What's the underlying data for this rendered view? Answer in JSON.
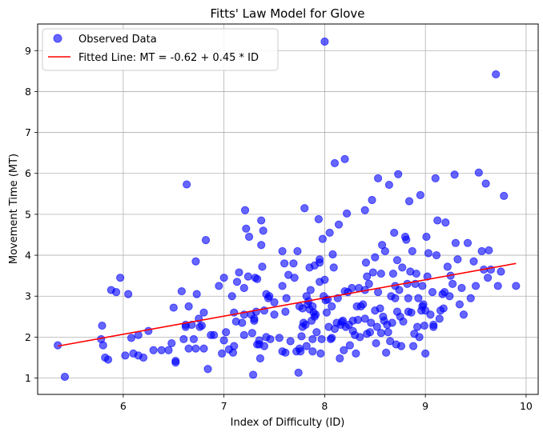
{
  "chart_data": {
    "type": "scatter",
    "title": "Fitts' Law Model for Glove",
    "xlabel": "Index of Difficulty (ID)",
    "ylabel": "Movement Time (MT)",
    "xlim": [
      5.15,
      10.12
    ],
    "ylim": [
      0.6,
      9.65
    ],
    "xticks": [
      6,
      7,
      8,
      9,
      10
    ],
    "yticks": [
      1,
      2,
      3,
      4,
      5,
      6,
      7,
      8,
      9
    ],
    "grid": true,
    "legend_position": "top-left",
    "colors": {
      "points": "#0000ff",
      "fit_line": "#ff0000",
      "grid": "#b0b0b0"
    },
    "series": [
      {
        "name": "Observed Data",
        "kind": "scatter",
        "points": [
          [
            5.35,
            1.8
          ],
          [
            5.42,
            1.03
          ],
          [
            5.78,
            1.95
          ],
          [
            5.79,
            2.28
          ],
          [
            5.8,
            1.8
          ],
          [
            5.82,
            1.5
          ],
          [
            5.85,
            1.45
          ],
          [
            5.88,
            3.15
          ],
          [
            5.93,
            3.1
          ],
          [
            5.97,
            3.45
          ],
          [
            6.02,
            1.55
          ],
          [
            6.05,
            3.05
          ],
          [
            6.08,
            1.98
          ],
          [
            6.1,
            1.6
          ],
          [
            6.15,
            2.05
          ],
          [
            6.15,
            1.55
          ],
          [
            6.2,
            1.5
          ],
          [
            6.25,
            2.15
          ],
          [
            6.3,
            1.68
          ],
          [
            6.38,
            1.68
          ],
          [
            6.45,
            1.68
          ],
          [
            6.48,
            1.85
          ],
          [
            6.5,
            2.72
          ],
          [
            6.52,
            1.42
          ],
          [
            6.52,
            1.38
          ],
          [
            6.58,
            3.12
          ],
          [
            6.6,
            1.95
          ],
          [
            6.62,
            2.3
          ],
          [
            6.62,
            2.25
          ],
          [
            6.63,
            5.73
          ],
          [
            6.65,
            2.75
          ],
          [
            6.65,
            1.72
          ],
          [
            6.68,
            2.3
          ],
          [
            6.7,
            1.95
          ],
          [
            6.72,
            3.85
          ],
          [
            6.72,
            1.72
          ],
          [
            6.73,
            3.05
          ],
          [
            6.75,
            2.45
          ],
          [
            6.76,
            2.25
          ],
          [
            6.78,
            2.28
          ],
          [
            6.8,
            2.6
          ],
          [
            6.8,
            1.72
          ],
          [
            6.82,
            4.37
          ],
          [
            6.84,
            1.22
          ],
          [
            6.87,
            2.05
          ],
          [
            6.9,
            2.05
          ],
          [
            6.95,
            3.25
          ],
          [
            6.98,
            1.6
          ],
          [
            7.0,
            1.92
          ],
          [
            7.0,
            3.45
          ],
          [
            7.02,
            2.12
          ],
          [
            7.05,
            1.7
          ],
          [
            7.08,
            3.0
          ],
          [
            7.09,
            1.62
          ],
          [
            7.1,
            2.6
          ],
          [
            7.1,
            1.78
          ],
          [
            7.12,
            2.38
          ],
          [
            7.13,
            3.35
          ],
          [
            7.15,
            3.58
          ],
          [
            7.18,
            2.35
          ],
          [
            7.2,
            2.05
          ],
          [
            7.2,
            2.55
          ],
          [
            7.2,
            3.2
          ],
          [
            7.21,
            5.1
          ],
          [
            7.22,
            4.65
          ],
          [
            7.24,
            3.48
          ],
          [
            7.25,
            4.45
          ],
          [
            7.27,
            2.55
          ],
          [
            7.28,
            2.1
          ],
          [
            7.29,
            1.08
          ],
          [
            7.3,
            2.4
          ],
          [
            7.3,
            2.45
          ],
          [
            7.31,
            3.45
          ],
          [
            7.32,
            2.62
          ],
          [
            7.33,
            1.82
          ],
          [
            7.33,
            3.42
          ],
          [
            7.35,
            1.82
          ],
          [
            7.35,
            1.92
          ],
          [
            7.36,
            1.48
          ],
          [
            7.37,
            4.85
          ],
          [
            7.37,
            4.25
          ],
          [
            7.38,
            3.72
          ],
          [
            7.39,
            4.6
          ],
          [
            7.4,
            2.65
          ],
          [
            7.4,
            1.78
          ],
          [
            7.42,
            3.05
          ],
          [
            7.42,
            2.0
          ],
          [
            7.44,
            2.95
          ],
          [
            7.45,
            3.0
          ],
          [
            7.46,
            1.95
          ],
          [
            7.5,
            2.85
          ],
          [
            7.5,
            2.55
          ],
          [
            7.55,
            1.98
          ],
          [
            7.58,
            4.1
          ],
          [
            7.58,
            1.65
          ],
          [
            7.58,
            3.25
          ],
          [
            7.6,
            3.8
          ],
          [
            7.61,
            2.62
          ],
          [
            7.61,
            1.62
          ],
          [
            7.62,
            2.95
          ],
          [
            7.64,
            3.52
          ],
          [
            7.66,
            1.9
          ],
          [
            7.69,
            3.8
          ],
          [
            7.7,
            3.45
          ],
          [
            7.72,
            1.65
          ],
          [
            7.73,
            4.1
          ],
          [
            7.74,
            1.13
          ],
          [
            7.75,
            2.75
          ],
          [
            7.75,
            1.72
          ],
          [
            7.76,
            1.65
          ],
          [
            7.77,
            2.02
          ],
          [
            7.78,
            2.7
          ],
          [
            7.78,
            2.25
          ],
          [
            7.79,
            2.35
          ],
          [
            7.8,
            5.15
          ],
          [
            7.81,
            2.3
          ],
          [
            7.82,
            3.0
          ],
          [
            7.82,
            1.78
          ],
          [
            7.83,
            2.8
          ],
          [
            7.84,
            2.88
          ],
          [
            7.85,
            2.68
          ],
          [
            7.85,
            3.7
          ],
          [
            7.86,
            3.15
          ],
          [
            7.87,
            2.4
          ],
          [
            7.88,
            1.95
          ],
          [
            7.88,
            2.75
          ],
          [
            7.88,
            1.65
          ],
          [
            7.89,
            2.6
          ],
          [
            7.9,
            3.75
          ],
          [
            7.9,
            2.5
          ],
          [
            7.91,
            2.55
          ],
          [
            7.92,
            2.12
          ],
          [
            7.94,
            4.88
          ],
          [
            7.95,
            3.35
          ],
          [
            7.95,
            3.82
          ],
          [
            7.95,
            3.9
          ],
          [
            7.96,
            1.6
          ],
          [
            7.97,
            1.95
          ],
          [
            7.98,
            4.4
          ],
          [
            7.99,
            3.0
          ],
          [
            8.0,
            9.22
          ],
          [
            8.0,
            3.4
          ],
          [
            8.01,
            2.9
          ],
          [
            8.02,
            2.6
          ],
          [
            8.03,
            2.92
          ],
          [
            8.04,
            2.25
          ],
          [
            8.05,
            4.55
          ],
          [
            8.06,
            1.95
          ],
          [
            8.07,
            2.75
          ],
          [
            8.07,
            1.98
          ],
          [
            8.08,
            4.02
          ],
          [
            8.09,
            3.7
          ],
          [
            8.1,
            6.25
          ],
          [
            8.1,
            2.2
          ],
          [
            8.12,
            2.35
          ],
          [
            8.13,
            2.95
          ],
          [
            8.14,
            4.75
          ],
          [
            8.15,
            1.48
          ],
          [
            8.16,
            2.3
          ],
          [
            8.17,
            2.37
          ],
          [
            8.18,
            2.4
          ],
          [
            8.19,
            1.68
          ],
          [
            8.2,
            6.35
          ],
          [
            8.2,
            3.12
          ],
          [
            8.21,
            2.25
          ],
          [
            8.22,
            5.02
          ],
          [
            8.23,
            3.1
          ],
          [
            8.24,
            2.3
          ],
          [
            8.25,
            1.8
          ],
          [
            8.27,
            3.2
          ],
          [
            8.28,
            2.4
          ],
          [
            8.28,
            2.15
          ],
          [
            8.3,
            2.05
          ],
          [
            8.31,
            1.6
          ],
          [
            8.32,
            2.75
          ],
          [
            8.33,
            2.42
          ],
          [
            8.34,
            3.2
          ],
          [
            8.35,
            2.0
          ],
          [
            8.36,
            2.75
          ],
          [
            8.38,
            2.8
          ],
          [
            8.4,
            5.1
          ],
          [
            8.4,
            3.15
          ],
          [
            8.4,
            2.45
          ],
          [
            8.41,
            3.82
          ],
          [
            8.42,
            3.48
          ],
          [
            8.42,
            2.08
          ],
          [
            8.44,
            3.3
          ],
          [
            8.45,
            2.12
          ],
          [
            8.46,
            2.35
          ],
          [
            8.47,
            5.35
          ],
          [
            8.48,
            3.58
          ],
          [
            8.5,
            3.95
          ],
          [
            8.5,
            2.65
          ],
          [
            8.51,
            1.85
          ],
          [
            8.52,
            2.25
          ],
          [
            8.53,
            5.88
          ],
          [
            8.53,
            3.1
          ],
          [
            8.55,
            2.7
          ],
          [
            8.56,
            3.55
          ],
          [
            8.56,
            2.1
          ],
          [
            8.57,
            4.25
          ],
          [
            8.58,
            2.5
          ],
          [
            8.59,
            2.4
          ],
          [
            8.6,
            4.1
          ],
          [
            8.61,
            1.62
          ],
          [
            8.62,
            2.3
          ],
          [
            8.63,
            2.12
          ],
          [
            8.64,
            5.72
          ],
          [
            8.65,
            1.9
          ],
          [
            8.66,
            3.0
          ],
          [
            8.67,
            2.35
          ],
          [
            8.68,
            3.55
          ],
          [
            8.69,
            4.55
          ],
          [
            8.7,
            3.25
          ],
          [
            8.7,
            2.95
          ],
          [
            8.71,
            1.82
          ],
          [
            8.72,
            2.62
          ],
          [
            8.72,
            3.88
          ],
          [
            8.73,
            5.98
          ],
          [
            8.74,
            3.15
          ],
          [
            8.75,
            2.5
          ],
          [
            8.76,
            1.78
          ],
          [
            8.77,
            3.7
          ],
          [
            8.78,
            2.38
          ],
          [
            8.8,
            4.45
          ],
          [
            8.81,
            4.38
          ],
          [
            8.82,
            3.3
          ],
          [
            8.83,
            2.95
          ],
          [
            8.83,
            2.62
          ],
          [
            8.84,
            5.32
          ],
          [
            8.85,
            3.6
          ],
          [
            8.86,
            2.6
          ],
          [
            8.87,
            4.1
          ],
          [
            8.88,
            1.78
          ],
          [
            8.89,
            2.08
          ],
          [
            8.9,
            3.3
          ],
          [
            8.91,
            3.55
          ],
          [
            8.92,
            2.25
          ],
          [
            8.93,
            2.95
          ],
          [
            8.94,
            2.0
          ],
          [
            8.95,
            5.47
          ],
          [
            8.96,
            2.65
          ],
          [
            8.97,
            3.25
          ],
          [
            8.97,
            2.75
          ],
          [
            8.98,
            2.8
          ],
          [
            8.99,
            2.28
          ],
          [
            9.0,
            1.6
          ],
          [
            9.0,
            2.65
          ],
          [
            9.01,
            4.45
          ],
          [
            9.02,
            3.48
          ],
          [
            9.03,
            4.05
          ],
          [
            9.05,
            2.55
          ],
          [
            9.07,
            3.1
          ],
          [
            9.08,
            2.3
          ],
          [
            9.08,
            2.25
          ],
          [
            9.1,
            5.88
          ],
          [
            9.11,
            4.0
          ],
          [
            9.12,
            4.85
          ],
          [
            9.14,
            2.45
          ],
          [
            9.15,
            2.65
          ],
          [
            9.17,
            3.05
          ],
          [
            9.18,
            2.7
          ],
          [
            9.19,
            3.1
          ],
          [
            9.2,
            4.8
          ],
          [
            9.22,
            3.72
          ],
          [
            9.24,
            3.0
          ],
          [
            9.25,
            3.5
          ],
          [
            9.27,
            3.3
          ],
          [
            9.29,
            5.97
          ],
          [
            9.3,
            4.3
          ],
          [
            9.32,
            3.9
          ],
          [
            9.34,
            2.8
          ],
          [
            9.36,
            3.2
          ],
          [
            9.38,
            2.55
          ],
          [
            9.42,
            4.3
          ],
          [
            9.45,
            2.95
          ],
          [
            9.48,
            3.85
          ],
          [
            9.5,
            3.25
          ],
          [
            9.53,
            6.02
          ],
          [
            9.56,
            4.1
          ],
          [
            9.58,
            3.65
          ],
          [
            9.6,
            5.75
          ],
          [
            9.62,
            3.45
          ],
          [
            9.63,
            4.12
          ],
          [
            9.65,
            3.65
          ],
          [
            9.7,
            8.42
          ],
          [
            9.72,
            3.25
          ],
          [
            9.75,
            3.6
          ],
          [
            9.78,
            5.45
          ],
          [
            9.9,
            3.25
          ]
        ]
      },
      {
        "name": "Fitted Line: MT = -0.62 + 0.45 * ID",
        "kind": "line",
        "points": [
          [
            5.35,
            1.78
          ],
          [
            9.9,
            3.8
          ]
        ]
      }
    ]
  }
}
